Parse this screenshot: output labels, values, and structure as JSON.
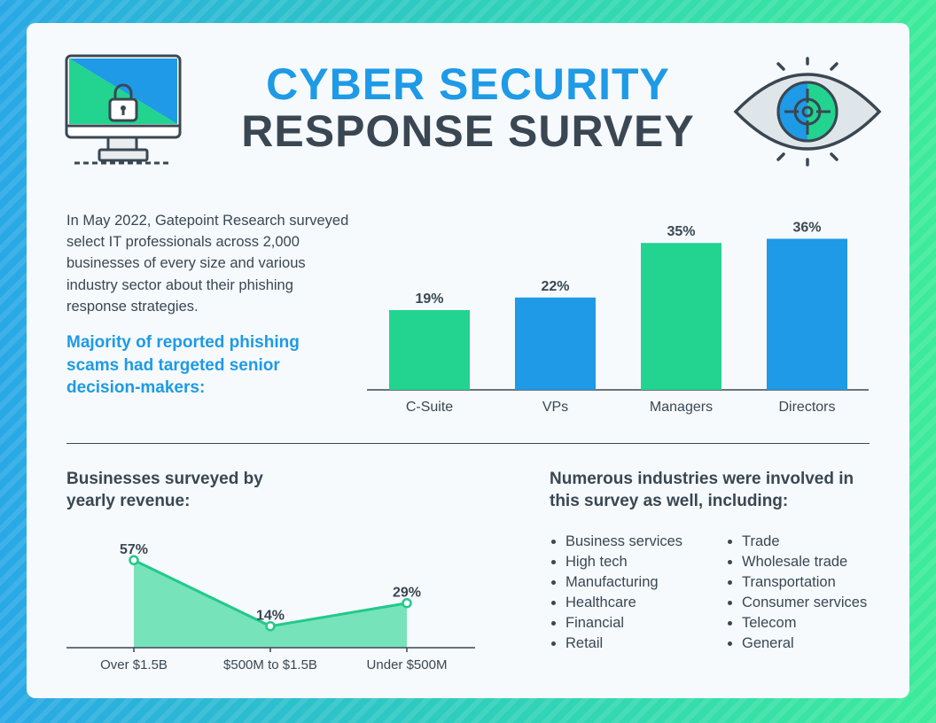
{
  "title": {
    "line1": "CYBER SECURITY",
    "line2": "RESPONSE SURVEY"
  },
  "intro": "In May 2022, Gatepoint Research surveyed select IT professionals across 2,000 businesses of every size and various industry sector about their phishing response strategies.",
  "highlight": "Majority of reported phishing scams had targeted senior decision-makers:",
  "revenue_title": "Businesses surveyed by yearly revenue:",
  "industries_title": "Numerous industries were involved in this survey as well, including:",
  "industries_col1": [
    "Business services",
    "High tech",
    "Manufacturing",
    "Healthcare",
    "Financial",
    "Retail"
  ],
  "industries_col2": [
    "Trade",
    "Wholesale trade",
    "Transportation",
    "Consumer services",
    "Telecom",
    "General"
  ],
  "icons": {
    "monitor": "computer-lock-icon",
    "eye": "eye-target-icon"
  },
  "colors": {
    "green": "#22d48f",
    "blue": "#1e9ae6",
    "dark": "#3a4753"
  },
  "chart_data": [
    {
      "type": "bar",
      "categories": [
        "C-Suite",
        "VPs",
        "Managers",
        "Directors"
      ],
      "values": [
        19,
        22,
        35,
        36
      ],
      "labels": [
        "19%",
        "22%",
        "35%",
        "36%"
      ],
      "ylim": [
        0,
        38
      ],
      "colors": [
        "#22d48f",
        "#1e9ae6",
        "#22d48f",
        "#1e9ae6"
      ]
    },
    {
      "type": "area",
      "categories": [
        "Over $1.5B",
        "$500M to $1.5B",
        "Under $500M"
      ],
      "values": [
        57,
        14,
        29
      ],
      "labels": [
        "57%",
        "14%",
        "29%"
      ],
      "ylim": [
        0,
        60
      ]
    }
  ]
}
